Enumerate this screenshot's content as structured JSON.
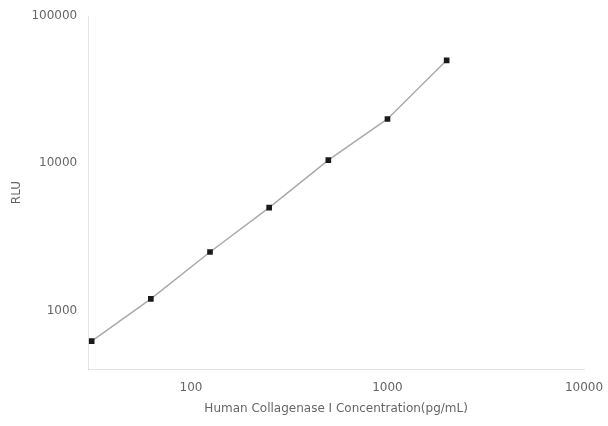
{
  "chart_data": {
    "type": "line",
    "x": [
      31.25,
      62.5,
      125,
      250,
      500,
      1000,
      2000
    ],
    "series": [
      {
        "type": "line",
        "color": "#aaaaaa",
        "values": [
          620,
          1200,
          2500,
          5000,
          10500,
          20000,
          50000
        ]
      },
      {
        "type": "scatter",
        "color": "#1a1a1a",
        "marker": "square",
        "values": [
          620,
          1200,
          2500,
          5000,
          10500,
          20000,
          50000
        ]
      }
    ],
    "xlabel": "Human Collagenase I Concentration(pg/mL)",
    "ylabel": "RLU",
    "log": true,
    "xlim": [
      30,
      10000
    ],
    "ylim": [
      400,
      100000
    ],
    "xticks": [
      100,
      1000,
      10000
    ],
    "yticks": [
      1000,
      10000,
      100000
    ],
    "grid": false
  }
}
